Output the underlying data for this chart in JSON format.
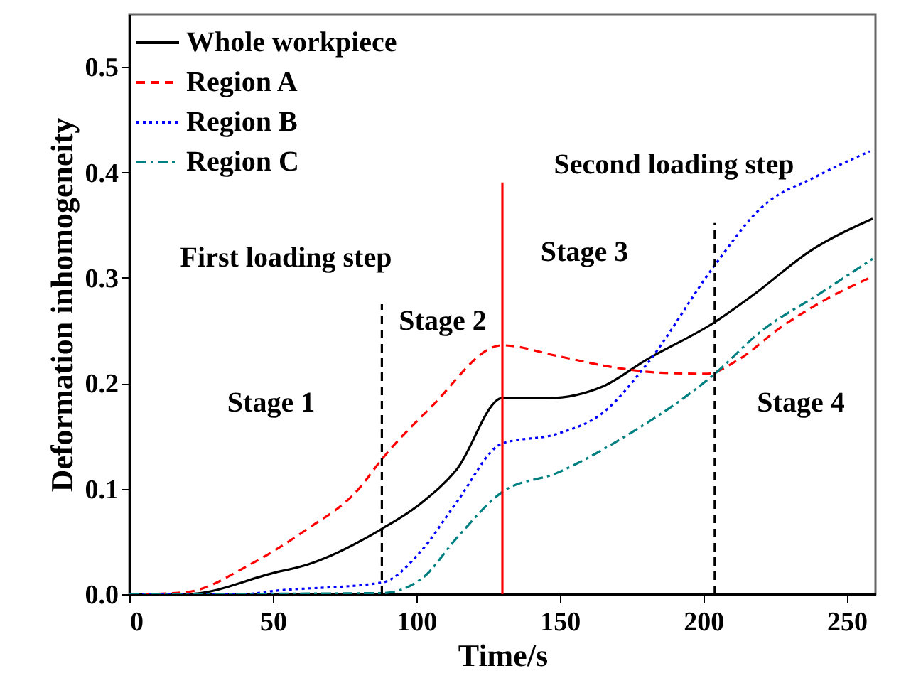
{
  "chart_data": {
    "type": "line",
    "xlabel": "Time/s",
    "ylabel": "Deformation inhomogeneity",
    "xlim": [
      0,
      260
    ],
    "xticks": [
      0,
      50,
      100,
      150,
      200,
      250
    ],
    "ylim": [
      0,
      0.55
    ],
    "yticks": [
      {
        "value": 0,
        "label": "0.0"
      },
      {
        "value": 0.1,
        "label": "0.1"
      },
      {
        "value": 0.2,
        "label": "0.2"
      },
      {
        "value": 0.3,
        "label": "0.3"
      },
      {
        "value": 0.4,
        "label": "0.4"
      },
      {
        "value": 0.5,
        "label": "0.5"
      }
    ],
    "legend": "top left",
    "grid": false,
    "series": [
      {
        "name": "Whole workpiece",
        "color": "#000000",
        "line_style": "solid",
        "x": [
          0,
          20,
          50,
          62,
          88,
          102,
          114,
          130,
          146,
          165,
          180,
          204,
          218,
          237,
          259
        ],
        "values": [
          0,
          0,
          0.02,
          0.028,
          0.062,
          0.087,
          0.118,
          0.186,
          0.186,
          0.197,
          0.222,
          0.258,
          0.285,
          0.325,
          0.356
        ]
      },
      {
        "name": "Region A",
        "color": "#ff0000",
        "line_style": "dashed",
        "x": [
          0,
          5,
          20,
          42,
          61,
          80,
          88,
          105,
          130,
          149,
          169,
          185,
          201,
          212,
          227,
          243,
          258
        ],
        "values": [
          0,
          0,
          0.002,
          0.028,
          0.06,
          0.1,
          0.128,
          0.177,
          0.236,
          0.226,
          0.215,
          0.21,
          0.209,
          0.222,
          0.253,
          0.28,
          0.3
        ]
      },
      {
        "name": "Region B",
        "color": "#0000ff",
        "line_style": "dotted",
        "x": [
          0,
          40,
          50,
          88,
          102,
          114,
          130,
          149,
          165,
          180,
          204,
          220,
          240,
          258
        ],
        "values": [
          0,
          0,
          0.003,
          0.011,
          0.042,
          0.087,
          0.143,
          0.152,
          0.172,
          0.217,
          0.312,
          0.366,
          0.397,
          0.42
        ]
      },
      {
        "name": "Region C",
        "color": "#008080",
        "line_style": "dashdot",
        "x": [
          0,
          88,
          102,
          114,
          130,
          149,
          173,
          204,
          220,
          240,
          259
        ],
        "values": [
          0,
          0.001,
          0.015,
          0.053,
          0.097,
          0.115,
          0.15,
          0.209,
          0.249,
          0.284,
          0.318
        ]
      }
    ],
    "ref_lines": [
      {
        "axis": "x",
        "value": 88,
        "color": "#000000",
        "line_style": "dashed"
      },
      {
        "axis": "x",
        "value": 130,
        "color": "#ff0000",
        "line_style": "solid"
      },
      {
        "axis": "x",
        "value": 204,
        "color": "#000000",
        "line_style": "dashed"
      }
    ],
    "annotations": [
      "First loading step",
      "Stage 1",
      "Stage 2",
      "Second loading step",
      "Stage 3",
      "Stage 4"
    ]
  }
}
